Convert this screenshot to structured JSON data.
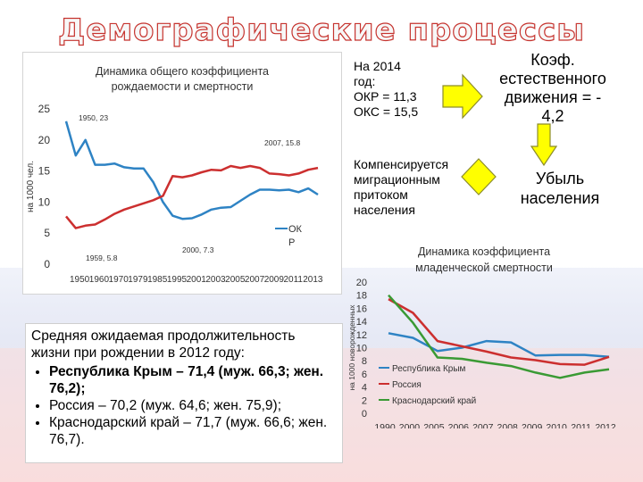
{
  "slide_title": "Демографические процессы",
  "info_2014": {
    "line1": "На 2014",
    "line2": "год:",
    "line3": "ОКР = 11,3",
    "line4": "ОКС = 15,5"
  },
  "koef": {
    "line1": "Коэф.",
    "line2": "естественного",
    "line3": "движения = -",
    "line4": "4,2"
  },
  "komp": {
    "line1": "Компенсируется",
    "line2": "миграционным",
    "line3": "притоком",
    "line4": "населения"
  },
  "ubyl": {
    "line1": "Убыль",
    "line2": "населения"
  },
  "life": {
    "intro": "Средняя ожидаемая продолжительность жизни при рождении в 2012 году:",
    "items": [
      "Республика Крым – 71,4 (муж. 66,3; жен. 76,2);",
      "Россия – 70,2 (муж. 64,6; жен. 75,9);",
      "Краснодарский край – 71,7 (муж. 66,6; жен. 76,7)."
    ]
  },
  "colors": {
    "birth": "#2e83c4",
    "death": "#cc2f2f",
    "krasnodar": "#3a9a34",
    "arrow_fill": "#ffff00",
    "arrow_stroke": "#8c8c2a"
  },
  "chart_data": [
    {
      "type": "line",
      "title": "Динамика общего коэффициента рождаемости и смертности",
      "ylabel": "на 1000 чел.",
      "ylim": [
        0,
        25
      ],
      "yticks": [
        "0",
        "5",
        "10",
        "15",
        "20",
        "25"
      ],
      "xtick_labels": [
        "1950",
        "1960",
        "1970",
        "1979",
        "1985",
        "1995",
        "2001",
        "2003",
        "2005",
        "2007",
        "2009",
        "2011",
        "2013"
      ],
      "legend_fragments": [
        "ОК",
        "Р"
      ],
      "annotations": [
        "1950, 23",
        "2007, 15.8",
        "2000, 7.3",
        "1959, 5.8"
      ],
      "series": [
        {
          "id": "birth",
          "values": [
            23,
            17.5,
            20,
            16,
            16,
            16.2,
            15.6,
            15.4,
            15.4,
            13.2,
            10,
            7.8,
            7.3,
            7.4,
            8,
            8.8,
            9.1,
            9.2,
            10.2,
            11.2,
            12,
            12,
            11.9,
            12,
            11.6,
            12.2,
            11.2
          ]
        },
        {
          "id": "death",
          "values": [
            7.7,
            5.8,
            6.2,
            6.4,
            7.2,
            8.1,
            8.8,
            9.3,
            9.8,
            10.3,
            11,
            14.2,
            14,
            14.3,
            14.8,
            15.2,
            15.1,
            15.8,
            15.5,
            15.8,
            15.5,
            14.6,
            14.5,
            14.3,
            14.6,
            15.2,
            15.5
          ]
        }
      ]
    },
    {
      "type": "line",
      "title": "Динамика коэффициента младенческой смертности",
      "ylabel": "на 1000 новорожденных",
      "ylim": [
        0,
        20
      ],
      "yticks": [
        "0",
        "2",
        "4",
        "6",
        "8",
        "10",
        "12",
        "14",
        "16",
        "18",
        "20"
      ],
      "categories": [
        "1990",
        "2000",
        "2005",
        "2006",
        "2007",
        "2008",
        "2009",
        "2010",
        "2011",
        "2012"
      ],
      "legend": [
        "Республика Крым",
        "Россия",
        "Краснодарский край"
      ],
      "series": [
        {
          "name": "Республика Крым",
          "values": [
            12.2,
            11.5,
            9.5,
            10,
            11,
            10.8,
            8.8,
            8.9,
            8.9,
            8.6
          ]
        },
        {
          "name": "Россия",
          "values": [
            17.4,
            15.3,
            11,
            10.2,
            9.4,
            8.5,
            8.1,
            7.5,
            7.4,
            8.6
          ]
        },
        {
          "name": "Краснодарский край",
          "values": [
            18,
            13.8,
            8.5,
            8.3,
            7.7,
            7.2,
            6.2,
            5.4,
            6.2,
            6.7
          ]
        }
      ]
    }
  ]
}
